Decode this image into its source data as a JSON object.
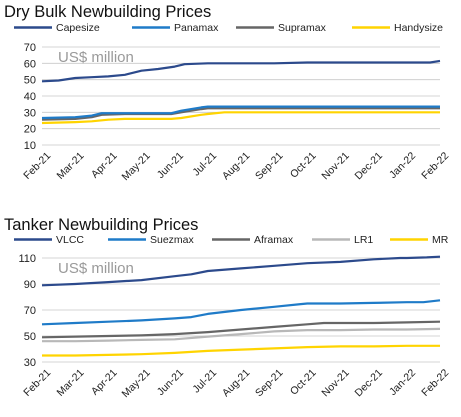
{
  "charts": [
    {
      "title": "Dry Bulk Newbuilding Prices",
      "unit_label": "US$ million",
      "chart_data": {
        "type": "line",
        "title": "Dry Bulk Newbuilding Prices",
        "ylabel": "US$ million",
        "ylim": [
          10,
          70
        ],
        "yticks": [
          10,
          20,
          30,
          40,
          50,
          60,
          70
        ],
        "grid": true,
        "legend_position": "top",
        "xtick_labels": [
          "Feb-21",
          "Mar-21",
          "Apr-21",
          "May-21",
          "Jun-21",
          "Jul-21",
          "Aug-21",
          "Sep-21",
          "Oct-21",
          "Nov-21",
          "Dec-21",
          "Jan-22",
          "Feb-22"
        ],
        "series": [
          {
            "name": "Capesize",
            "color": "#2c4a8c",
            "points": [
              [
                0,
                49
              ],
              [
                0.5,
                49.5
              ],
              [
                1,
                51
              ],
              [
                1.5,
                51.5
              ],
              [
                2,
                52
              ],
              [
                2.5,
                53
              ],
              [
                3,
                55.5
              ],
              [
                3.5,
                56.5
              ],
              [
                4,
                58
              ],
              [
                4.3,
                59.5
              ],
              [
                5,
                60
              ],
              [
                6,
                60
              ],
              [
                7,
                60
              ],
              [
                8,
                60.5
              ],
              [
                9,
                60.5
              ],
              [
                10,
                60.5
              ],
              [
                11,
                60.5
              ],
              [
                11.7,
                60.5
              ],
              [
                12,
                61.5
              ]
            ]
          },
          {
            "name": "Panamax",
            "color": "#1f7bc8",
            "points": [
              [
                0,
                26.5
              ],
              [
                1,
                27
              ],
              [
                1.5,
                28
              ],
              [
                1.8,
                29.5
              ],
              [
                2.5,
                29.5
              ],
              [
                3,
                29.5
              ],
              [
                3.5,
                29.5
              ],
              [
                3.9,
                29.5
              ],
              [
                4.2,
                31
              ],
              [
                4.8,
                33
              ],
              [
                5,
                33.5
              ],
              [
                6,
                33.5
              ],
              [
                7,
                33.5
              ],
              [
                8,
                33.5
              ],
              [
                9,
                33.5
              ],
              [
                10,
                33.5
              ],
              [
                11,
                33.5
              ],
              [
                12,
                33.5
              ]
            ]
          },
          {
            "name": "Supramax",
            "color": "#666666",
            "points": [
              [
                0,
                25.5
              ],
              [
                1,
                26
              ],
              [
                1.5,
                27
              ],
              [
                1.8,
                28.5
              ],
              [
                2.5,
                29
              ],
              [
                3,
                29
              ],
              [
                3.5,
                29
              ],
              [
                3.9,
                29
              ],
              [
                4.2,
                30
              ],
              [
                4.8,
                32
              ],
              [
                5,
                32.5
              ],
              [
                6,
                32.5
              ],
              [
                7,
                32.5
              ],
              [
                8,
                32.5
              ],
              [
                9,
                32.5
              ],
              [
                10,
                32.5
              ],
              [
                11,
                32.5
              ],
              [
                12,
                32.5
              ]
            ]
          },
          {
            "name": "Handysize",
            "color": "#ffd400",
            "points": [
              [
                0,
                23.5
              ],
              [
                1,
                24
              ],
              [
                1.5,
                24.5
              ],
              [
                2,
                25.5
              ],
              [
                2.5,
                26
              ],
              [
                3,
                26
              ],
              [
                3.5,
                26
              ],
              [
                3.9,
                26
              ],
              [
                4.2,
                26.5
              ],
              [
                4.8,
                28.5
              ],
              [
                5,
                29
              ],
              [
                5.5,
                30
              ],
              [
                6,
                30
              ],
              [
                7,
                30
              ],
              [
                8,
                30
              ],
              [
                9,
                30
              ],
              [
                10,
                30
              ],
              [
                11,
                30
              ],
              [
                12,
                30
              ]
            ]
          }
        ]
      }
    },
    {
      "title": "Tanker Newbuilding Prices",
      "unit_label": "US$ million",
      "chart_data": {
        "type": "line",
        "title": "Tanker Newbuilding Prices",
        "ylabel": "US$ million",
        "ylim": [
          30,
          110
        ],
        "yticks": [
          30,
          50,
          70,
          90,
          110
        ],
        "grid": true,
        "legend_position": "top",
        "xtick_labels": [
          "Feb-21",
          "Mar-21",
          "Apr-21",
          "May-21",
          "Jun-21",
          "Jul-21",
          "Aug-21",
          "Sep-21",
          "Oct-21",
          "Nov-21",
          "Dec-21",
          "Jan-22",
          "Feb-22"
        ],
        "series": [
          {
            "name": "VLCC",
            "color": "#2c4a8c",
            "points": [
              [
                0,
                89
              ],
              [
                1,
                90
              ],
              [
                2,
                91.5
              ],
              [
                3,
                93
              ],
              [
                4,
                96
              ],
              [
                4.5,
                97.5
              ],
              [
                5,
                100
              ],
              [
                6,
                102
              ],
              [
                7,
                104
              ],
              [
                8,
                106
              ],
              [
                9,
                107
              ],
              [
                10,
                109
              ],
              [
                10.8,
                110
              ],
              [
                11,
                110
              ],
              [
                11.6,
                110.5
              ],
              [
                12,
                111
              ]
            ]
          },
          {
            "name": "Suezmax",
            "color": "#1f7bc8",
            "points": [
              [
                0,
                59
              ],
              [
                1,
                60
              ],
              [
                2,
                61
              ],
              [
                3,
                62
              ],
              [
                4,
                63.5
              ],
              [
                4.5,
                64.5
              ],
              [
                5,
                67
              ],
              [
                6,
                70
              ],
              [
                7,
                72.5
              ],
              [
                7.8,
                74.5
              ],
              [
                8,
                75
              ],
              [
                9,
                75
              ],
              [
                10,
                75.5
              ],
              [
                11,
                76
              ],
              [
                11.5,
                76
              ],
              [
                12,
                77.5
              ]
            ]
          },
          {
            "name": "Aframax",
            "color": "#666666",
            "points": [
              [
                0,
                49
              ],
              [
                1,
                49.5
              ],
              [
                2,
                50
              ],
              [
                3,
                50.5
              ],
              [
                4,
                51.5
              ],
              [
                5,
                53
              ],
              [
                6,
                55
              ],
              [
                7,
                57
              ],
              [
                8,
                59
              ],
              [
                8.5,
                60
              ],
              [
                9,
                60
              ],
              [
                10,
                60
              ],
              [
                11,
                60.5
              ],
              [
                12,
                61
              ]
            ]
          },
          {
            "name": "LR1",
            "color": "#b8b8b8",
            "points": [
              [
                0,
                46
              ],
              [
                1,
                46
              ],
              [
                2,
                46.5
              ],
              [
                3,
                47
              ],
              [
                4,
                47.5
              ],
              [
                5,
                49.5
              ],
              [
                6,
                51.5
              ],
              [
                7,
                53.5
              ],
              [
                8,
                54.5
              ],
              [
                9,
                54.5
              ],
              [
                10,
                55
              ],
              [
                11,
                55
              ],
              [
                12,
                55.5
              ]
            ]
          },
          {
            "name": "MR",
            "color": "#ffd400",
            "points": [
              [
                0,
                35
              ],
              [
                1,
                35
              ],
              [
                2,
                35.5
              ],
              [
                3,
                36
              ],
              [
                4,
                37
              ],
              [
                5,
                38.5
              ],
              [
                6,
                39.5
              ],
              [
                7,
                40.5
              ],
              [
                8,
                41.5
              ],
              [
                9,
                42
              ],
              [
                10,
                42
              ],
              [
                11,
                42.5
              ],
              [
                12,
                42.5
              ]
            ]
          }
        ]
      }
    }
  ]
}
